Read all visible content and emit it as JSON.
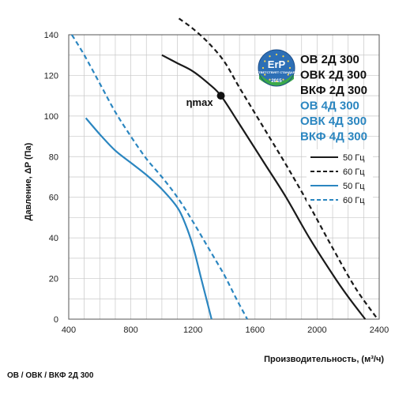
{
  "chart_data": {
    "type": "line",
    "xlabel": "Производительность, (м³/ч)",
    "ylabel": "Давление, ΔP (Па)",
    "xlim": [
      400,
      2400
    ],
    "ylim": [
      0,
      140
    ],
    "x_ticks": [
      "400",
      "800",
      "1200",
      "1600",
      "2000",
      "2400"
    ],
    "y_ticks": [
      "0",
      "20",
      "40",
      "60",
      "80",
      "100",
      "120",
      "140"
    ],
    "grid": true,
    "legend_position": "right",
    "colors": {
      "black": "#1a1a1a",
      "blue": "#2b86c0"
    },
    "series": [
      {
        "name": "50 Гц",
        "color": "#1a1a1a",
        "dashed": false,
        "points": [
          [
            1000,
            130
          ],
          [
            1100,
            126
          ],
          [
            1200,
            122
          ],
          [
            1300,
            116
          ],
          [
            1380,
            110
          ],
          [
            1500,
            96
          ],
          [
            1650,
            78
          ],
          [
            1800,
            60
          ],
          [
            1950,
            40
          ],
          [
            2100,
            22
          ],
          [
            2200,
            11
          ],
          [
            2310,
            0
          ]
        ]
      },
      {
        "name": "60 Гц",
        "color": "#1a1a1a",
        "dashed": true,
        "points": [
          [
            1110,
            148
          ],
          [
            1200,
            143
          ],
          [
            1300,
            136
          ],
          [
            1400,
            127
          ],
          [
            1500,
            114
          ],
          [
            1650,
            95
          ],
          [
            1800,
            76
          ],
          [
            1950,
            56
          ],
          [
            2100,
            35
          ],
          [
            2250,
            15
          ],
          [
            2390,
            0
          ]
        ]
      },
      {
        "name": "50 Гц",
        "color": "#2b86c0",
        "dashed": false,
        "points": [
          [
            510,
            99
          ],
          [
            600,
            91
          ],
          [
            700,
            83
          ],
          [
            800,
            77
          ],
          [
            900,
            71
          ],
          [
            1000,
            64
          ],
          [
            1100,
            55
          ],
          [
            1150,
            47
          ],
          [
            1200,
            36
          ],
          [
            1250,
            21
          ],
          [
            1290,
            9
          ],
          [
            1320,
            0
          ]
        ]
      },
      {
        "name": "60 Гц",
        "color": "#2b86c0",
        "dashed": true,
        "points": [
          [
            420,
            140
          ],
          [
            500,
            130
          ],
          [
            600,
            116
          ],
          [
            700,
            102
          ],
          [
            800,
            90
          ],
          [
            900,
            79
          ],
          [
            1000,
            70
          ],
          [
            1100,
            60
          ],
          [
            1200,
            48
          ],
          [
            1300,
            35
          ],
          [
            1400,
            22
          ],
          [
            1480,
            10
          ],
          [
            1550,
            0
          ]
        ]
      }
    ],
    "annotations": [
      {
        "text": "ηmax",
        "x": 1380,
        "y": 110
      }
    ]
  },
  "models": [
    {
      "text": "ОВ 2Д 300",
      "color": "#111111"
    },
    {
      "text": "ОВК 2Д 300",
      "color": "#111111"
    },
    {
      "text": "ВКФ 2Д 300",
      "color": "#111111"
    },
    {
      "text": "ОВ 4Д 300",
      "color": "#2b86c0"
    },
    {
      "text": "ОВК 4Д 300",
      "color": "#2b86c0"
    },
    {
      "text": "ВКФ 4Д 300",
      "color": "#2b86c0"
    }
  ],
  "badge": {
    "title": "ErP",
    "subtitle": "СООТВЕТСТВУЕТ СТАНДАРТАМ",
    "year": "2015"
  },
  "footer": "ОВ / ОВК / ВКФ 2Д 300"
}
